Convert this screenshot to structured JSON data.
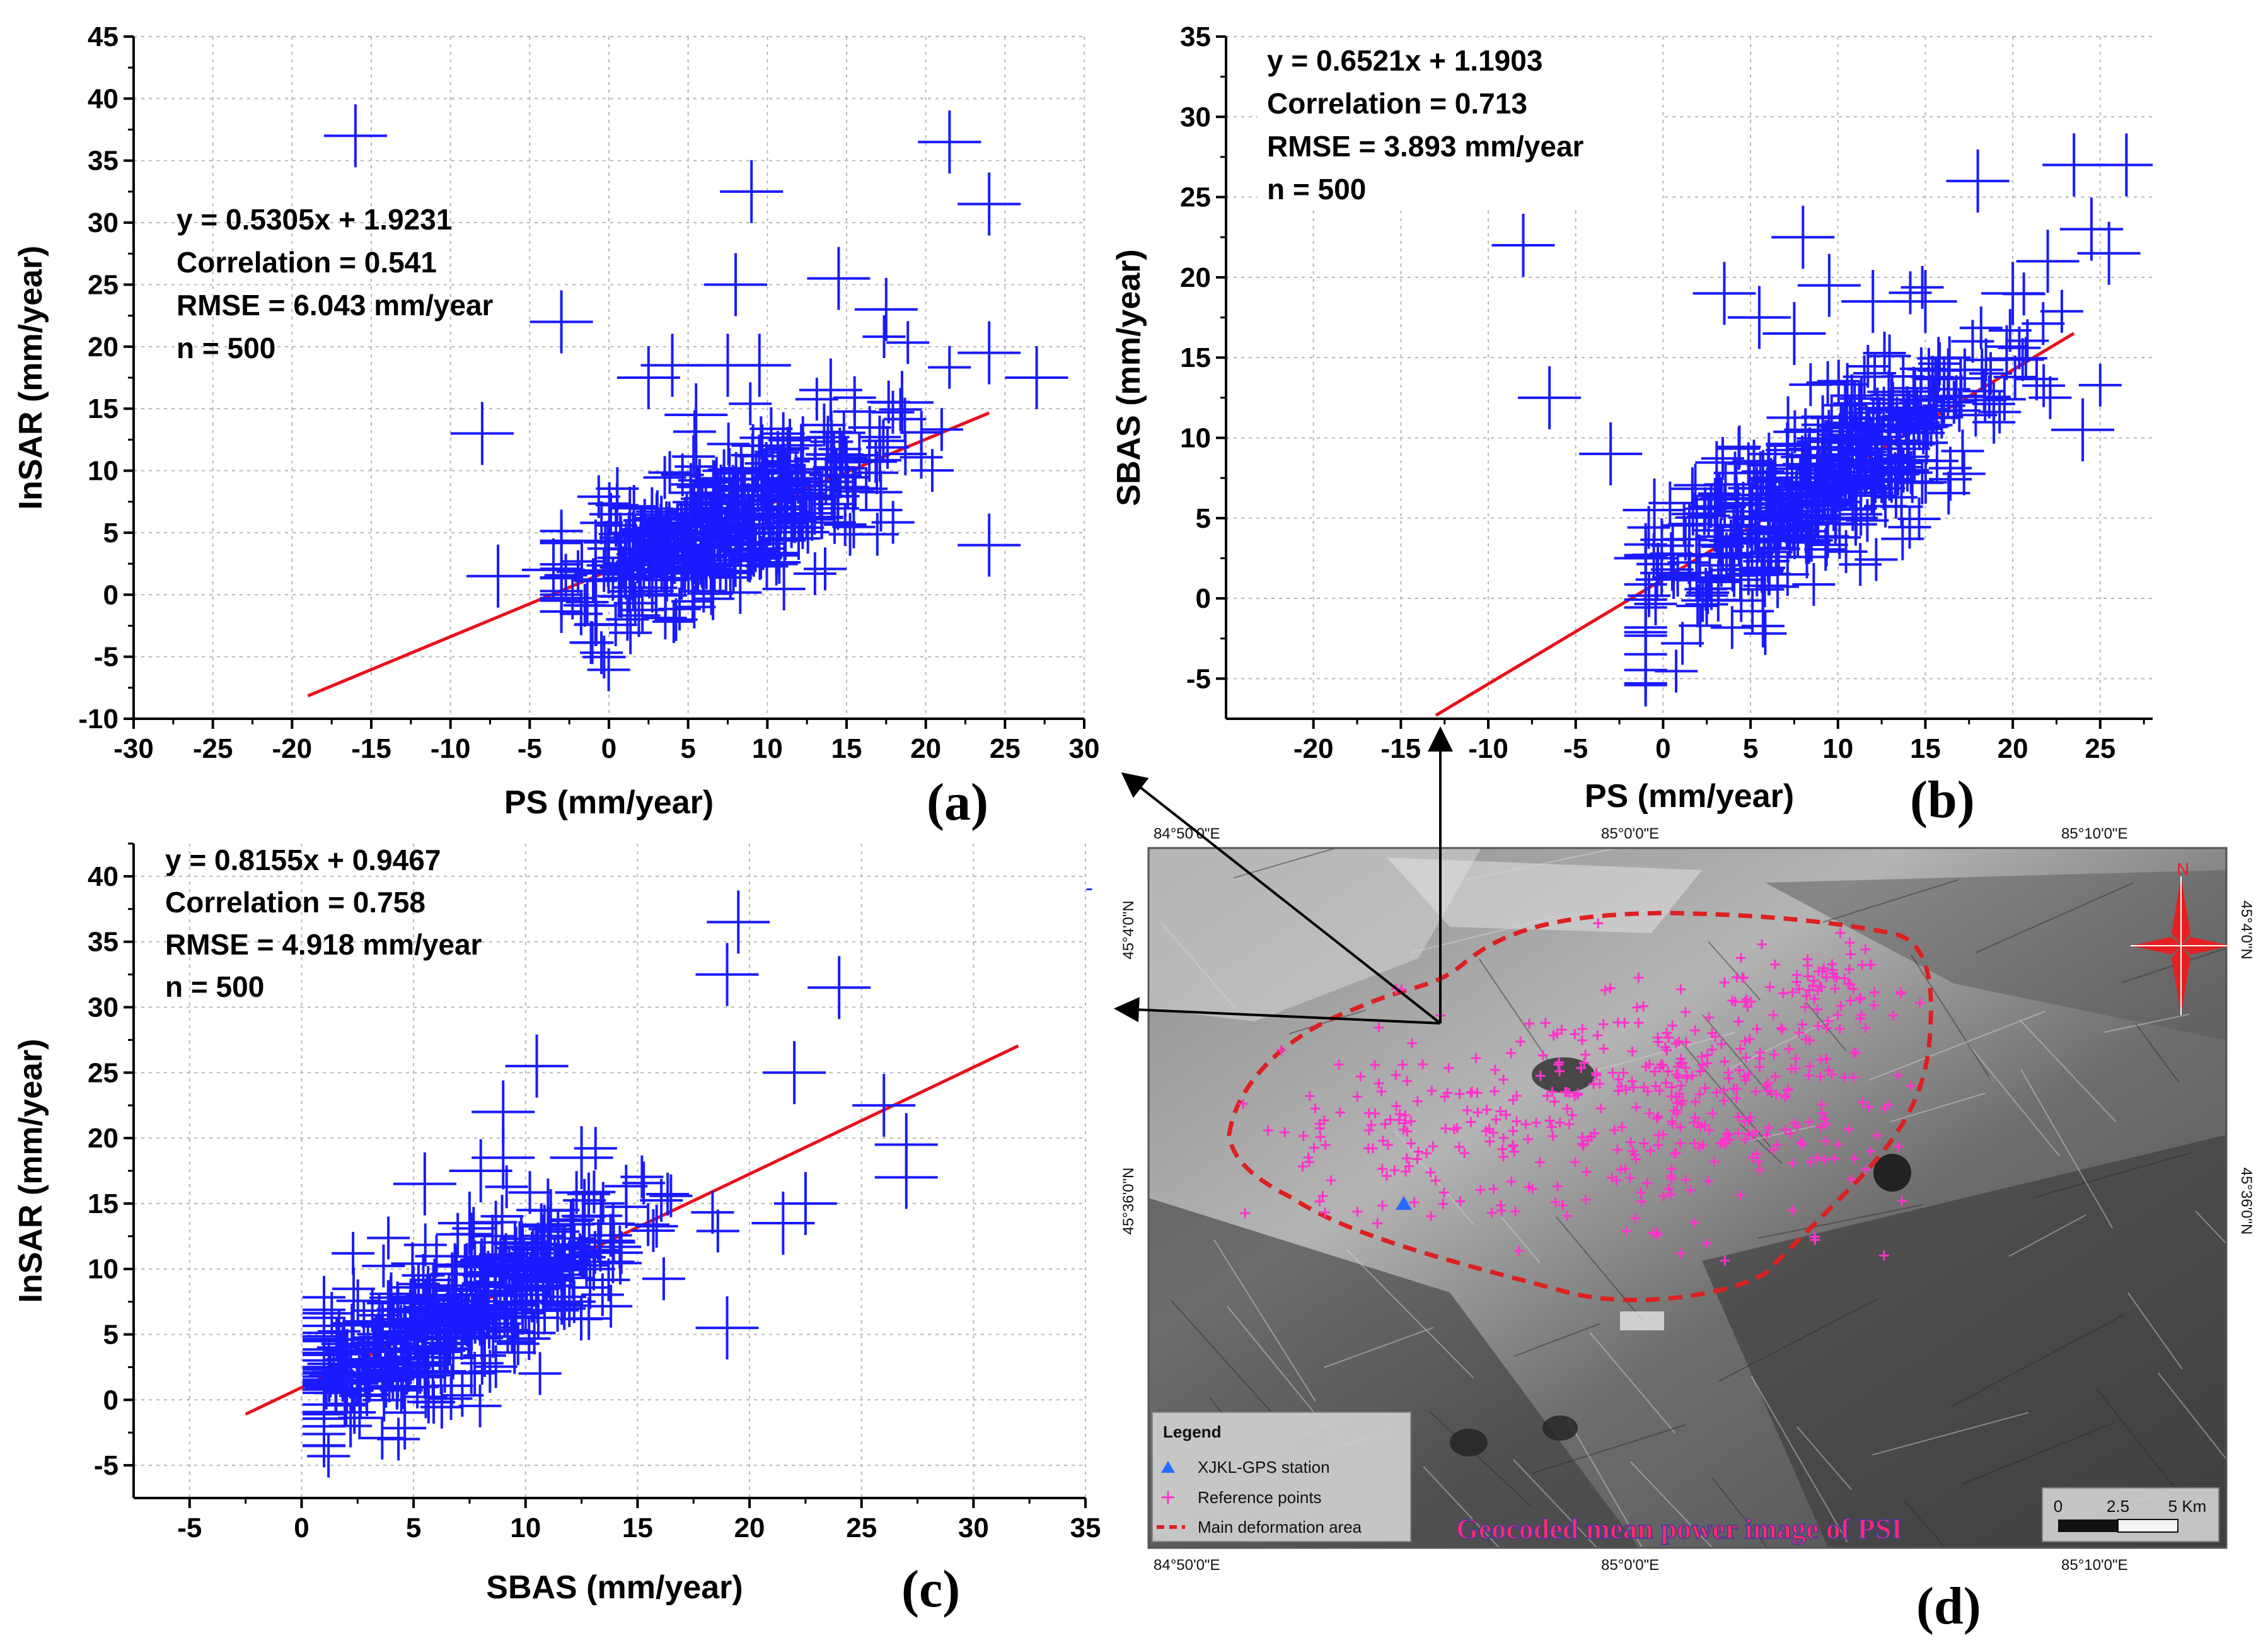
{
  "colors": {
    "points": "#1a1aff",
    "fit_line": "#e8101a",
    "grid": "#b8b8b8",
    "map_points": "#ff33cc",
    "map_boundary": "#dd2020",
    "gps_station": "#2a6bff",
    "map_title": "#ff2a6a"
  },
  "chart_data": [
    {
      "id": "a",
      "type": "scatter",
      "panel_label": "(a)",
      "xlabel": "PS (mm/year)",
      "ylabel": "InSAR (mm/year)",
      "xlim": [
        -30,
        30
      ],
      "ylim": [
        -10,
        45
      ],
      "xticks": [
        -30,
        -25,
        -20,
        -15,
        -10,
        -5,
        0,
        5,
        10,
        15,
        20,
        25,
        30
      ],
      "yticks": [
        -10,
        -5,
        0,
        5,
        10,
        15,
        20,
        25,
        30,
        35,
        40,
        45
      ],
      "fit": {
        "slope": 0.5305,
        "intercept": 1.9231,
        "x_from": -19,
        "x_to": 24
      },
      "stats": [
        "y = 0.5305x + 1.9231",
        "Correlation = 0.541",
        "RMSE = 6.043 mm/year",
        "n = 500"
      ],
      "cluster": {
        "x_mean": 7,
        "x_sd": 5.0,
        "x_min": -3,
        "x_max": 23,
        "resid_sd": 2.8,
        "count": 470,
        "seed": 11
      },
      "outliers": [
        [
          -16,
          37
        ],
        [
          21.5,
          36.5
        ],
        [
          9,
          32.5
        ],
        [
          24,
          31.5
        ],
        [
          14.5,
          25.5
        ],
        [
          8,
          25
        ],
        [
          17.5,
          23
        ],
        [
          -3,
          22
        ],
        [
          4,
          18.5
        ],
        [
          7.5,
          18.5
        ],
        [
          9.5,
          18.5
        ],
        [
          2.5,
          17.5
        ],
        [
          24,
          19.5
        ],
        [
          27,
          17.5
        ],
        [
          -8,
          13
        ],
        [
          5.5,
          14.5
        ],
        [
          14,
          16.5
        ],
        [
          18.5,
          15.5
        ],
        [
          24,
          4
        ],
        [
          -7,
          1.5
        ],
        [
          -3.5,
          2.0
        ]
      ]
    },
    {
      "id": "b",
      "type": "scatter",
      "panel_label": "(b)",
      "xlabel": "PS (mm/year)",
      "ylabel": "SBAS (mm/year)",
      "xlim": [
        -25,
        28
      ],
      "ylim": [
        -7.5,
        35
      ],
      "xticks": [
        -20,
        -15,
        -10,
        -5,
        0,
        5,
        10,
        15,
        20,
        25
      ],
      "yticks": [
        -5,
        0,
        5,
        10,
        15,
        20,
        25,
        30,
        35
      ],
      "fit": {
        "slope": 0.6521,
        "intercept": 1.1903,
        "x_from": -13,
        "x_to": 23.5
      },
      "stats": [
        "y = 0.6521x + 1.1903",
        "Correlation = 0.713",
        "RMSE = 3.893 mm/year",
        "n = 500"
      ],
      "cluster": {
        "x_mean": 8.5,
        "x_sd": 5.0,
        "x_min": -1,
        "x_max": 25,
        "resid_sd": 2.6,
        "count": 475,
        "seed": 23
      },
      "outliers": [
        [
          -8,
          22
        ],
        [
          -6.5,
          12.5
        ],
        [
          -3,
          9
        ],
        [
          -0.5,
          5.5
        ],
        [
          -1,
          2.5
        ],
        [
          3.5,
          19
        ],
        [
          8,
          22.5
        ],
        [
          9.5,
          19.5
        ],
        [
          18,
          26
        ],
        [
          23.5,
          27
        ],
        [
          26.5,
          27
        ],
        [
          24.5,
          23
        ],
        [
          25.5,
          21.5
        ],
        [
          24,
          10.5
        ],
        [
          22,
          21
        ],
        [
          15,
          18.5
        ],
        [
          5.5,
          17.5
        ],
        [
          7.5,
          16.5
        ],
        [
          12,
          18.5
        ],
        [
          20,
          19
        ]
      ]
    },
    {
      "id": "c",
      "type": "scatter",
      "panel_label": "(c)",
      "xlabel": "SBAS (mm/year)",
      "ylabel": "InSAR (mm/year)",
      "xlim": [
        -7.5,
        35
      ],
      "ylim": [
        -7.5,
        42.5
      ],
      "xticks": [
        -5,
        0,
        5,
        10,
        15,
        20,
        25,
        30,
        35
      ],
      "yticks": [
        -5,
        0,
        5,
        10,
        15,
        20,
        25,
        30,
        35,
        40
      ],
      "fit": {
        "slope": 0.8155,
        "intercept": 0.9467,
        "x_from": -2.5,
        "x_to": 32
      },
      "stats": [
        "y = 0.8155x + 0.9467",
        "Correlation = 0.758",
        "RMSE = 4.918 mm/year",
        "n = 500"
      ],
      "cluster": {
        "x_mean": 7,
        "x_sd": 4.0,
        "x_min": 1,
        "x_max": 22,
        "resid_sd": 2.7,
        "count": 475,
        "seed": 37
      },
      "outliers": [
        [
          19.5,
          36.5
        ],
        [
          19,
          32.5
        ],
        [
          24,
          31.5
        ],
        [
          22,
          25
        ],
        [
          10.5,
          25.5
        ],
        [
          9,
          22
        ],
        [
          9,
          18.5
        ],
        [
          8,
          17.5
        ],
        [
          12.5,
          18.5
        ],
        [
          5.5,
          16.5
        ],
        [
          26,
          22.5
        ],
        [
          27,
          19.5
        ],
        [
          27,
          17
        ],
        [
          7.5,
          13.5
        ],
        [
          11,
          14.5
        ],
        [
          22.5,
          15
        ],
        [
          21.5,
          13.5
        ],
        [
          19,
          5.5
        ]
      ]
    }
  ],
  "map": {
    "panel_label": "(d)",
    "lon_labels_top": [
      "84°50'0\"E",
      "85°0'0\"E",
      "85°10'0\"E"
    ],
    "lon_labels_bottom": [
      "84°50'0\"E",
      "85°0'0\"E",
      "85°10'0\"E"
    ],
    "lat_labels": [
      "45°4'0\"N",
      "45°36'0\"N"
    ],
    "north_label": "N",
    "legend": {
      "title": "Legend",
      "items": [
        "XJKL-GPS station",
        "Reference points",
        "Main deformation area"
      ]
    },
    "scale": {
      "labels": [
        "0",
        "2.5",
        "5 Km"
      ]
    },
    "image_title": "Geocoded mean power image of PSI",
    "reference_points": {
      "count": 520,
      "seed": 7
    }
  }
}
